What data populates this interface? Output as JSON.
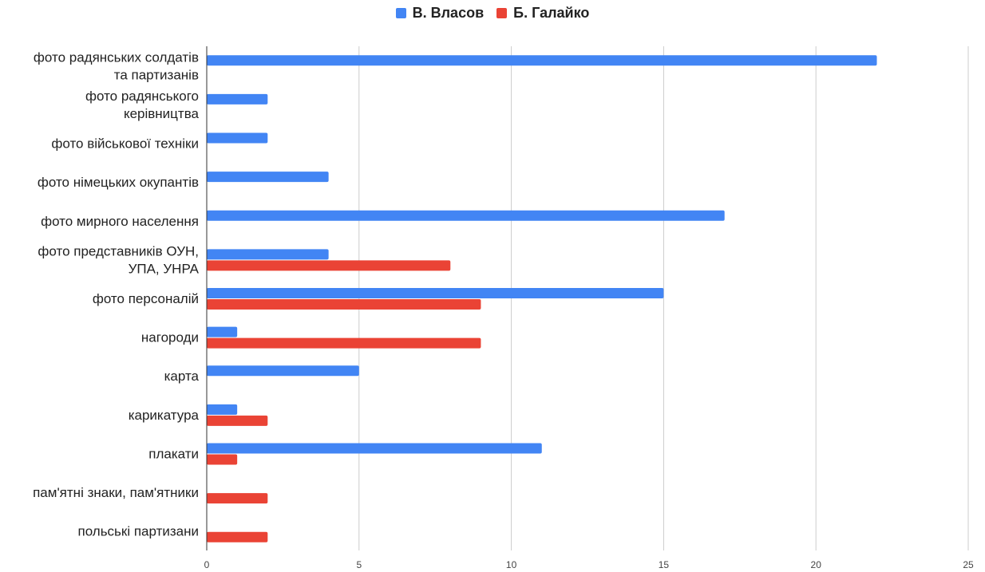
{
  "chart_data": {
    "type": "bar",
    "orientation": "horizontal",
    "categories": [
      [
        "фото радянських солдатів",
        "та партизанів"
      ],
      [
        "фото радянського",
        "керівництва"
      ],
      [
        "фото військової техніки"
      ],
      [
        "фото німецьких окупантів"
      ],
      [
        "фото мирного населення"
      ],
      [
        "фото представників ОУН,",
        "УПА, УНРА"
      ],
      [
        "фото персоналій"
      ],
      [
        "нагороди"
      ],
      [
        "карта"
      ],
      [
        "карикатура"
      ],
      [
        "плакати"
      ],
      [
        "пам'ятні знаки, пам'ятники"
      ],
      [
        "польські партизани"
      ]
    ],
    "series": [
      {
        "name": "В. Власов",
        "color": "#4285F4",
        "values": [
          22,
          2,
          2,
          4,
          17,
          4,
          15,
          1,
          5,
          1,
          11,
          0,
          0
        ]
      },
      {
        "name": "Б. Галайко",
        "color": "#EA4335",
        "values": [
          0,
          0,
          0,
          0,
          0,
          8,
          9,
          9,
          0,
          2,
          1,
          2,
          2
        ]
      }
    ],
    "xlim": [
      0,
      25
    ],
    "xticks": [
      "0",
      "5",
      "10",
      "15",
      "20",
      "25"
    ],
    "grid": true,
    "legend": "top-center"
  }
}
